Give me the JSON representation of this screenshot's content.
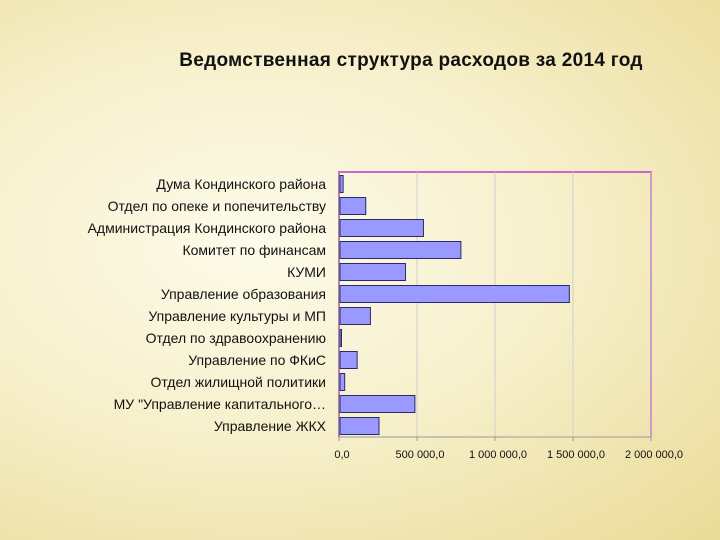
{
  "title": "Ведомственная структура расходов за 2014 год",
  "chart_data": {
    "type": "bar",
    "orientation": "horizontal",
    "title": "Ведомственная структура расходов за 2014 год",
    "categories": [
      "Дума Кондинского района",
      "Отдел  по опеке и попечительству",
      "Администрация Кондинского района",
      "Комитет по финансам",
      "КУМИ",
      "Управление  образования",
      "Управление культуры и МП",
      "Отдел  по здравоохранению",
      "Управление по ФКиС",
      "Отдел  жилищной политики",
      "МУ \"Управление капитального…",
      "Управление ЖКХ"
    ],
    "values": [
      20000,
      165000,
      535000,
      775000,
      420000,
      1470000,
      195000,
      5000,
      110000,
      30000,
      480000,
      250000
    ],
    "xlim": [
      0,
      2000000
    ],
    "xticks": [
      0,
      500000,
      1000000,
      1500000,
      2000000
    ],
    "xtick_labels": [
      "0,0",
      "500 000,0",
      "1 000 000,0",
      "1 500 000,0",
      "2 000 000,0"
    ],
    "grid": true,
    "bar_color": "#9999ff",
    "bar_stroke": "#2a2a6a",
    "plot_border_color": "#cc66cc",
    "grid_color": "#cfcfcf"
  }
}
